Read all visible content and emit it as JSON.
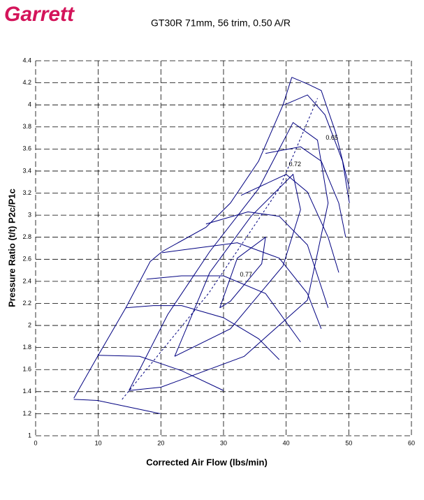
{
  "brand": "Garrett",
  "chart_data": {
    "type": "line",
    "title": "GT30R 71mm, 56 trim, 0.50 A/R",
    "xlabel": "Corrected Air Flow (lbs/min)",
    "ylabel": "Pressure Ratio (t/t) P2c/P1c",
    "xlim": [
      0,
      60
    ],
    "xticks": [
      0,
      10,
      20,
      30,
      40,
      50,
      60
    ],
    "ylim": [
      1,
      4.4
    ],
    "yticks": [
      1,
      1.2,
      1.4,
      1.6,
      1.8,
      2,
      2.2,
      2.4,
      2.6,
      2.8,
      3,
      3.2,
      3.4,
      3.6,
      3.8,
      4,
      4.2,
      4.4
    ],
    "grid": true,
    "series": [
      {
        "color": "#000080",
        "x": [
          6.1,
          9.9,
          14.4,
          18.3,
          20.2,
          27.2,
          31.1,
          35.6,
          39.5,
          40.9
        ],
        "values": [
          1.34,
          1.72,
          2.16,
          2.58,
          2.67,
          2.89,
          3.11,
          3.49,
          4.0,
          4.25
        ]
      },
      {
        "color": "#000080",
        "x": [
          6.1,
          9.9,
          16.6,
          19.9
        ],
        "values": [
          1.33,
          1.32,
          1.24,
          1.2
        ]
      },
      {
        "color": "#000080",
        "x": [
          9.9,
          16.6,
          23.3,
          30.0
        ],
        "values": [
          1.73,
          1.72,
          1.59,
          1.41
        ]
      },
      {
        "color": "#000080",
        "x": [
          14.4,
          18.8,
          23.3,
          30,
          35.6,
          38.9
        ],
        "values": [
          2.16,
          2.18,
          2.18,
          2.07,
          1.88,
          1.69
        ]
      },
      {
        "color": "#000080",
        "x": [
          17.7,
          23.3,
          30,
          36.7,
          42.3
        ],
        "values": [
          2.42,
          2.45,
          2.45,
          2.29,
          1.85
        ]
      },
      {
        "color": "#000080",
        "x": [
          20.2,
          25.5,
          32.2,
          38.9,
          43.4,
          45.6
        ],
        "values": [
          2.66,
          2.7,
          2.75,
          2.61,
          2.29,
          1.97
        ]
      },
      {
        "color": "#000080",
        "x": [
          27.2,
          33.9,
          38.9,
          43.4,
          46.7
        ],
        "values": [
          2.92,
          3.03,
          2.99,
          2.73,
          2.16
        ]
      },
      {
        "color": "#000080",
        "x": [
          32.8,
          40.0,
          43.4,
          46.7,
          48.4
        ],
        "values": [
          3.18,
          3.37,
          3.21,
          2.8,
          2.48
        ]
      },
      {
        "color": "#000080",
        "x": [
          36.7,
          42.3,
          45.6,
          48.4,
          49.5
        ],
        "values": [
          3.56,
          3.62,
          3.49,
          3.11,
          2.8
        ]
      },
      {
        "color": "#000080",
        "x": [
          39.7,
          43.4,
          46.2,
          49.0,
          50.1
        ],
        "values": [
          4.0,
          4.09,
          3.91,
          3.49,
          3.11
        ]
      },
      {
        "color": "#000080",
        "x": [
          40.9,
          43.4,
          45.6,
          47.9,
          50.1
        ],
        "values": [
          4.25,
          4.19,
          4.13,
          3.75,
          3.24
        ]
      },
      {
        "color": "#000080",
        "x": [
          29.4,
          32.2,
          36.7,
          36.1,
          31.1,
          29.4
        ],
        "values": [
          2.16,
          2.61,
          2.8,
          2.56,
          2.22,
          2.16
        ]
      },
      {
        "color": "#000080",
        "x": [
          22.2,
          27.8,
          34.4,
          41.1,
          42.3,
          39.5,
          31.1,
          22.2
        ],
        "values": [
          1.72,
          2.48,
          2.99,
          3.37,
          3.05,
          2.54,
          1.97,
          1.72
        ]
      },
      {
        "color": "#000080",
        "x": [
          14.9,
          21.1,
          27.8,
          35.6,
          41.1,
          45.0,
          46.7,
          43.4,
          33.3,
          20.0,
          14.9
        ],
        "values": [
          1.41,
          2.1,
          2.67,
          3.24,
          3.84,
          3.68,
          3.11,
          2.23,
          1.72,
          1.44,
          1.41
        ]
      },
      {
        "color": "#000080",
        "dash": true,
        "x": [
          13.8,
          27.6,
          38.9,
          45.0
        ],
        "values": [
          1.33,
          2.29,
          3.24,
          4.06
        ]
      }
    ],
    "annotations": [
      {
        "text": "0.65",
        "x": 47.3,
        "y": 3.7
      },
      {
        "text": "0.72",
        "x": 41.4,
        "y": 3.46
      },
      {
        "text": "0.77",
        "x": 33.6,
        "y": 2.46
      }
    ]
  }
}
